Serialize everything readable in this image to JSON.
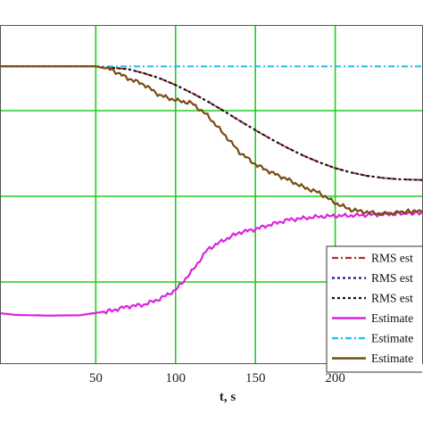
{
  "chart_data": {
    "type": "line",
    "title": "",
    "xlabel": "t, s",
    "ylabel": "",
    "xlim": [
      -10,
      255
    ],
    "ylim": [
      0,
      1
    ],
    "x_ticks": [
      50,
      100,
      150,
      200
    ],
    "grid": true,
    "grid_color": "#22cc22",
    "legend_position": "bottom-right",
    "series": [
      {
        "name": "RMS est",
        "color": "#b03030",
        "style": "dash-dot",
        "x": [
          -10,
          50,
          70,
          80,
          90,
          100,
          110,
          120,
          130,
          140,
          150,
          160,
          170,
          180,
          190,
          200,
          210,
          220,
          230,
          240,
          255
        ],
        "y": [
          0.878,
          0.878,
          0.87,
          0.858,
          0.843,
          0.823,
          0.8,
          0.775,
          0.747,
          0.718,
          0.69,
          0.663,
          0.638,
          0.615,
          0.595,
          0.578,
          0.565,
          0.555,
          0.549,
          0.545,
          0.543
        ]
      },
      {
        "name": "RMS est",
        "color": "#1a1a8c",
        "style": "dotted",
        "x": [
          -10,
          50,
          70,
          80,
          90,
          100,
          110,
          120,
          130,
          140,
          150,
          160,
          170,
          180,
          190,
          200,
          210,
          220,
          230,
          240,
          255
        ],
        "y": [
          0.878,
          0.878,
          0.87,
          0.858,
          0.843,
          0.823,
          0.8,
          0.775,
          0.747,
          0.718,
          0.69,
          0.663,
          0.638,
          0.615,
          0.595,
          0.578,
          0.565,
          0.555,
          0.549,
          0.545,
          0.543
        ]
      },
      {
        "name": "RMS est",
        "color": "#111111",
        "style": "dotted",
        "x": [
          -10,
          50,
          70,
          80,
          90,
          100,
          110,
          120,
          130,
          140,
          150,
          160,
          170,
          180,
          190,
          200,
          210,
          220,
          230,
          240,
          255
        ],
        "y": [
          0.878,
          0.878,
          0.87,
          0.858,
          0.843,
          0.823,
          0.8,
          0.775,
          0.747,
          0.718,
          0.69,
          0.663,
          0.638,
          0.615,
          0.595,
          0.578,
          0.565,
          0.555,
          0.549,
          0.545,
          0.543
        ]
      },
      {
        "name": "Estimate",
        "color": "#dd22dd",
        "style": "solid",
        "x": [
          -10,
          0,
          20,
          40,
          60,
          70,
          80,
          90,
          100,
          110,
          120,
          130,
          140,
          150,
          160,
          170,
          180,
          190,
          200,
          210,
          220,
          230,
          240,
          255
        ],
        "y": [
          0.15,
          0.145,
          0.143,
          0.144,
          0.158,
          0.17,
          0.175,
          0.192,
          0.218,
          0.272,
          0.338,
          0.365,
          0.388,
          0.398,
          0.412,
          0.425,
          0.43,
          0.435,
          0.437,
          0.438,
          0.44,
          0.442,
          0.444,
          0.446
        ]
      },
      {
        "name": "Estimate",
        "color": "#22bbee",
        "style": "dash-dot",
        "x": [
          -10,
          255
        ],
        "y": [
          0.878,
          0.878
        ]
      },
      {
        "name": "Estimate",
        "color": "#7a4a10",
        "style": "solid",
        "x": [
          -10,
          50,
          60,
          70,
          80,
          90,
          100,
          110,
          120,
          130,
          140,
          150,
          160,
          170,
          180,
          190,
          200,
          210,
          220,
          230,
          240,
          255
        ],
        "y": [
          0.878,
          0.878,
          0.868,
          0.843,
          0.825,
          0.793,
          0.778,
          0.77,
          0.733,
          0.68,
          0.625,
          0.589,
          0.565,
          0.545,
          0.522,
          0.505,
          0.475,
          0.455,
          0.448,
          0.443,
          0.448,
          0.452
        ]
      }
    ]
  }
}
